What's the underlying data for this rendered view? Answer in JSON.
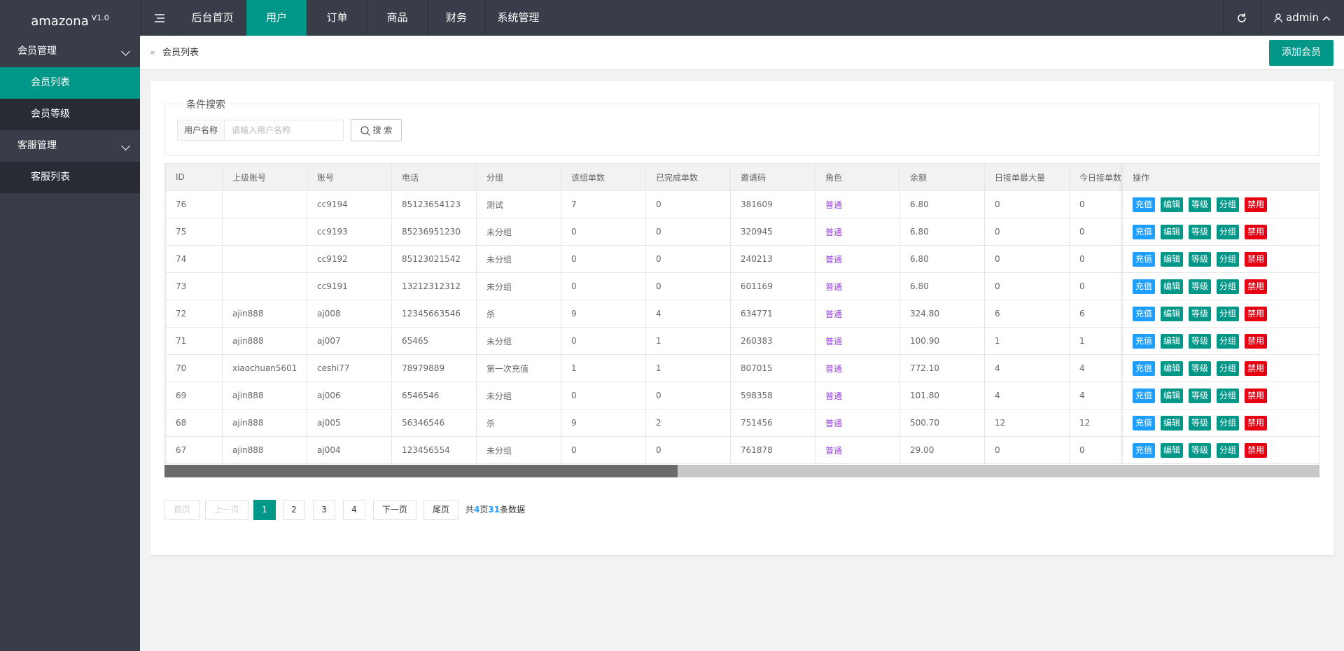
{
  "header": {
    "brand": "amazona",
    "version": "V1.0",
    "nav": [
      "后台首页",
      "用户",
      "订单",
      "商品",
      "财务",
      "系统管理"
    ],
    "user": "admin"
  },
  "sidebar": {
    "groups": [
      {
        "title": "会员管理",
        "items": [
          "会员列表",
          "会员等级"
        ]
      },
      {
        "title": "客服管理",
        "items": [
          "客服列表"
        ]
      }
    ]
  },
  "breadcrumb": "会员列表",
  "add_button": "添加会员",
  "search": {
    "legend": "条件搜索",
    "label": "用户名称",
    "placeholder": "请输入用户名称",
    "button": "搜 索"
  },
  "table": {
    "columns": [
      "ID",
      "上级账号",
      "账号",
      "电话",
      "分组",
      "该组单数",
      "已完成单数",
      "邀请码",
      "角色",
      "余额",
      "日接单最大量",
      "今日接单数",
      "操作"
    ],
    "actions": [
      "充值",
      "编辑",
      "等级",
      "分组",
      "禁用"
    ],
    "rows": [
      [
        "76",
        null,
        "cc9194",
        "85123654123",
        "测试",
        "7",
        "0",
        "381609",
        "普通",
        "6.80",
        "0",
        "0"
      ],
      [
        "75",
        null,
        "cc9193",
        "85236951230",
        "未分组",
        "0",
        "0",
        "320945",
        "普通",
        "6.80",
        "0",
        "0"
      ],
      [
        "74",
        null,
        "cc9192",
        "85123021542",
        "未分组",
        "0",
        "0",
        "240213",
        "普通",
        "6.80",
        "0",
        "0"
      ],
      [
        "73",
        null,
        "cc9191",
        "13212312312",
        "未分组",
        "0",
        "0",
        "601169",
        "普通",
        "6.80",
        "0",
        "0"
      ],
      [
        "72",
        "ajin888",
        "aj008",
        "12345663546",
        "杀",
        "9",
        "4",
        "634771",
        "普通",
        "324.80",
        "6",
        "6"
      ],
      [
        "71",
        "ajin888",
        "aj007",
        "65465",
        "未分组",
        "0",
        "1",
        "260383",
        "普通",
        "100.90",
        "1",
        "1"
      ],
      [
        "70",
        "xiaochuan5601",
        "ceshi77",
        "78979889",
        "第一次充值",
        "1",
        "1",
        "807015",
        "普通",
        "772.10",
        "4",
        "4"
      ],
      [
        "69",
        "ajin888",
        "aj006",
        "6546546",
        "未分组",
        "0",
        "0",
        "598358",
        "普通",
        "101.80",
        "4",
        "4"
      ],
      [
        "68",
        "ajin888",
        "aj005",
        "56346546",
        "杀",
        "9",
        "2",
        "751456",
        "普通",
        "500.70",
        "12",
        "12"
      ],
      [
        "67",
        "ajin888",
        "aj004",
        "123456554",
        "未分组",
        "0",
        "0",
        "761878",
        "普通",
        "29.00",
        "0",
        "0"
      ]
    ]
  },
  "pagination": {
    "first": "首页",
    "prev": "上一页",
    "pages": [
      "1",
      "2",
      "3",
      "4"
    ],
    "next": "下一页",
    "last": "尾页",
    "total_prefix": "共",
    "total_pages": "4",
    "pages_suffix": "页",
    "total_count": "31",
    "count_suffix": "条数据"
  }
}
